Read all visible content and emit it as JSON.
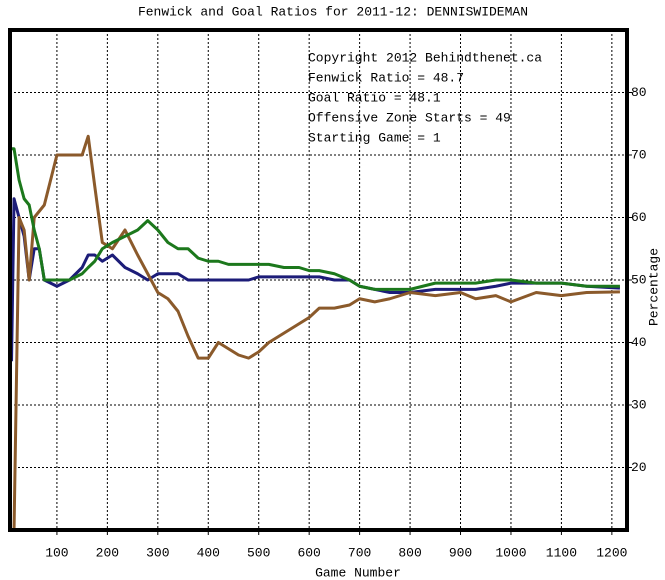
{
  "chart_data": {
    "type": "line",
    "title": "Fenwick and Goal Ratios for 2011-12: DENNISWIDEMAN",
    "xlabel": "Game Number",
    "ylabel": "Percentage",
    "annotations": [
      "Copyright 2012 Behindthenet.ca",
      "Starting Game = 1"
    ],
    "x": [
      10,
      15,
      25,
      35,
      45,
      55,
      65,
      75,
      100,
      125,
      150,
      162,
      175,
      190,
      210,
      235,
      260,
      280,
      300,
      320,
      340,
      360,
      380,
      400,
      420,
      440,
      460,
      480,
      500,
      520,
      550,
      580,
      600,
      620,
      650,
      680,
      700,
      730,
      760,
      800,
      850,
      900,
      930,
      970,
      1000,
      1050,
      1100,
      1150,
      1216
    ],
    "series": [
      {
        "name": "Fenwick Ratio = 48.7",
        "color": "#1c1c78",
        "values": [
          37,
          63,
          60,
          57,
          50,
          55,
          55,
          50,
          49,
          50,
          52,
          54,
          54,
          53,
          54,
          52,
          51,
          50,
          51,
          51,
          51,
          50,
          50,
          50,
          50,
          50,
          50,
          50,
          50.5,
          50.5,
          50.5,
          50.5,
          50.5,
          50.5,
          50,
          50,
          49,
          48.5,
          48,
          48,
          48.5,
          48.5,
          48.5,
          49,
          49.5,
          49.5,
          49.5,
          49,
          48.7
        ]
      },
      {
        "name": "Goal Ratio = 48.1",
        "color": "#8b5a2b",
        "values": [
          10,
          10,
          60,
          58,
          50,
          60,
          61,
          62,
          70,
          70,
          70,
          73,
          65,
          56,
          55,
          58,
          54,
          51,
          48,
          47,
          45,
          41,
          37.5,
          37.5,
          40,
          39,
          38,
          37.5,
          38.5,
          40,
          41.5,
          43,
          44,
          45.5,
          45.5,
          46,
          47,
          46.5,
          47,
          48,
          47.5,
          48,
          47,
          47.5,
          46.5,
          48,
          47.5,
          48,
          48.1
        ]
      },
      {
        "name": "Offensive Zone Starts = 49",
        "color": "#1c781c",
        "values": [
          71,
          71,
          66,
          63,
          62,
          58,
          55,
          50,
          50,
          50,
          51,
          52,
          53,
          55,
          56,
          57,
          58,
          59.5,
          58,
          56,
          55,
          55,
          53.5,
          53,
          53,
          52.5,
          52.5,
          52.5,
          52.5,
          52.5,
          52,
          52,
          51.5,
          51.5,
          51,
          50,
          49,
          48.5,
          48.5,
          48.5,
          49.5,
          49.5,
          49.5,
          50,
          50,
          49.5,
          49.5,
          49,
          49
        ]
      }
    ],
    "xlim": [
      7,
      1230
    ],
    "ylim": [
      10,
      90
    ],
    "xticks": [
      100,
      200,
      300,
      400,
      500,
      600,
      700,
      800,
      900,
      1000,
      1100,
      1200
    ],
    "yticks": [
      20,
      30,
      40,
      50,
      60,
      70,
      80
    ],
    "grid": true
  }
}
